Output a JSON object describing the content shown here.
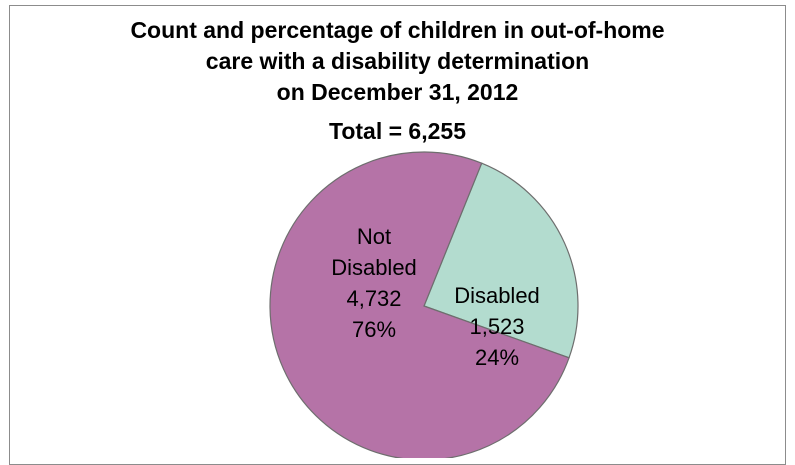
{
  "chart_data": {
    "type": "pie",
    "title_lines": [
      "Count and percentage of children in out-of-home",
      "care with a disability determination",
      "on December 31, 2012"
    ],
    "subtitle": "Total = 6,255",
    "slices": [
      {
        "label_lines": [
          "Not",
          "Disabled",
          "4,732",
          "76%"
        ],
        "value": 4732,
        "percent": 76,
        "color": "#b573a7"
      },
      {
        "label_lines": [
          "Disabled",
          "1,523",
          "24%"
        ],
        "value": 1523,
        "percent": 24,
        "color": "#b3dccf"
      }
    ],
    "legend": "none"
  }
}
